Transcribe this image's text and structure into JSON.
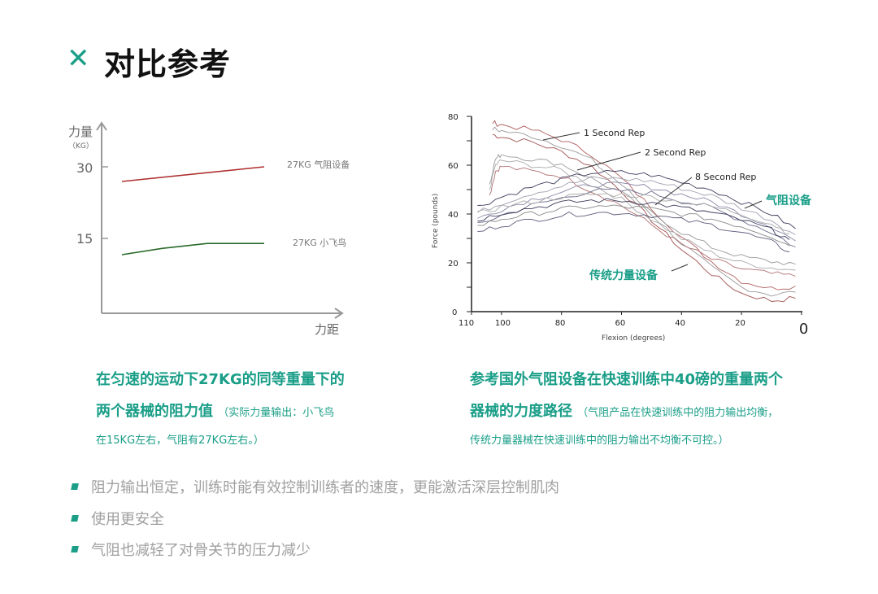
{
  "colors": {
    "accent": "#1a9e88",
    "title": "#111111",
    "bullet_text": "#a0a0a0",
    "red_line": "#b03030",
    "green_line": "#2a6a2a"
  },
  "header": {
    "icon": "close-x-icon",
    "title": "对比参考"
  },
  "left_caption": {
    "line1": "在匀速的运动下27KG的同等重量下的",
    "line2": "两个器械的阻力值",
    "note1": "（实际力量输出：小飞鸟",
    "note2": "在15KG左右，气阻有27KG左右。）"
  },
  "right_caption": {
    "line1": "参考国外气阻设备在快速训练中40磅的重量两个",
    "line2": "器械的力度路径",
    "note1": "（气阻产品在快速训练中的阻力输出均衡，",
    "note2": "传统力量器械在快速训练中的阻力输出不均衡不可控。）"
  },
  "bullets": [
    "阻力输出恒定，训练时能有效控制训练者的速度，更能激活深层控制肌肉",
    "使用更安全",
    "气阻也减轻了对骨关节的压力减少"
  ],
  "chart_data": [
    {
      "type": "line",
      "ylabel": "力量",
      "yunit": "（KG）",
      "xlabel": "力距",
      "yticks": [
        "30",
        "15"
      ],
      "ylim": [
        0,
        35
      ],
      "xlim": [
        0,
        10
      ],
      "series": [
        {
          "name": "27KG 气阻设备",
          "x": [
            1,
            8
          ],
          "y": [
            27,
            30
          ]
        },
        {
          "name": "27KG 小飞鸟",
          "x": [
            1,
            3,
            5.2,
            8
          ],
          "y": [
            12,
            13.3,
            14.3,
            14.3
          ]
        }
      ]
    },
    {
      "type": "line",
      "ylabel": "Force (pounds)",
      "xlabel": "Flexion (degrees)",
      "xticks": [
        "110",
        "100",
        "80",
        "60",
        "40",
        "20",
        "0"
      ],
      "yticks": [
        "0",
        "20",
        "40",
        "60",
        "80"
      ],
      "xlim": [
        110,
        0
      ],
      "ylim": [
        0,
        80
      ],
      "annotations": [
        "1 Second Rep",
        "2 Second Rep",
        "8 Second Rep",
        "气阻设备",
        "传统力量设备"
      ],
      "series": [
        {
          "name": "1 Second Rep",
          "x": [
            103,
            100,
            90,
            80,
            70,
            60,
            50,
            40,
            30,
            20,
            10,
            2
          ],
          "y": [
            75,
            74,
            72,
            68,
            62,
            52,
            40,
            28,
            18,
            10,
            7,
            8
          ]
        },
        {
          "name": "2 Second Rep",
          "x": [
            104,
            102,
            100,
            90,
            80,
            70,
            60,
            50,
            40,
            30,
            20,
            10,
            2
          ],
          "y": [
            50,
            60,
            62,
            60,
            58,
            52,
            46,
            38,
            30,
            24,
            20,
            18,
            17
          ]
        },
        {
          "name": "8 Second Rep",
          "x": [
            108,
            100,
            90,
            80,
            70,
            60,
            50,
            40,
            30,
            20,
            10,
            2
          ],
          "y": [
            38,
            42,
            46,
            49,
            52,
            52,
            51,
            48,
            45,
            40,
            35,
            29
          ]
        },
        {
          "name": "气阻设备 (lower band)",
          "x": [
            108,
            100,
            90,
            80,
            70,
            60,
            50,
            40,
            30,
            20,
            10,
            4
          ],
          "y": [
            35,
            38,
            40,
            42,
            43,
            43,
            42,
            40,
            38,
            35,
            31,
            27
          ]
        }
      ]
    }
  ]
}
